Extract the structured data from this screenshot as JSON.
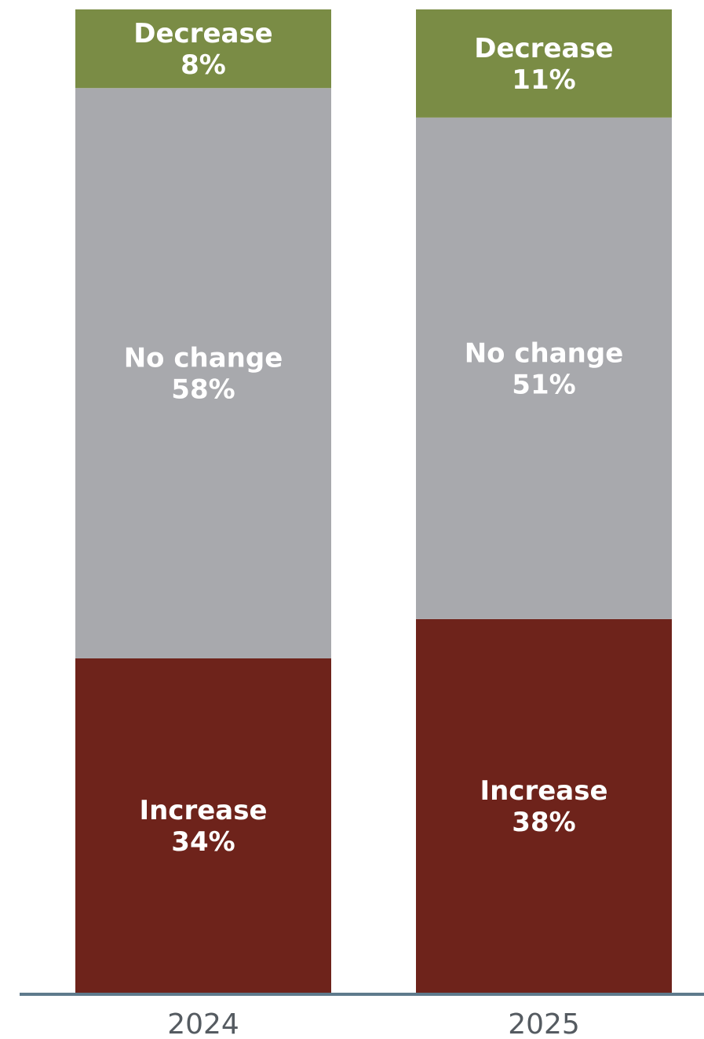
{
  "chart_data": {
    "type": "bar",
    "stacked": true,
    "orientation": "vertical",
    "categories": [
      "2024",
      "2025"
    ],
    "series": [
      {
        "name": "Increase",
        "values": [
          34,
          38
        ],
        "labels": [
          "34%",
          "38%"
        ],
        "color": "#6e231b"
      },
      {
        "name": "No change",
        "values": [
          58,
          51
        ],
        "labels": [
          "58%",
          "51%"
        ],
        "color": "#a8a9ad"
      },
      {
        "name": "Decrease",
        "values": [
          8,
          11
        ],
        "labels": [
          "8%",
          "11%"
        ],
        "color": "#7a8c45"
      }
    ],
    "axis_color": "#5e7a8c",
    "tick_label_color": "#555b61",
    "label_color": "#ffffff",
    "ylim": [
      0,
      100
    ],
    "title": "",
    "xlabel": "",
    "ylabel": "",
    "grid": false,
    "legend": "none"
  }
}
